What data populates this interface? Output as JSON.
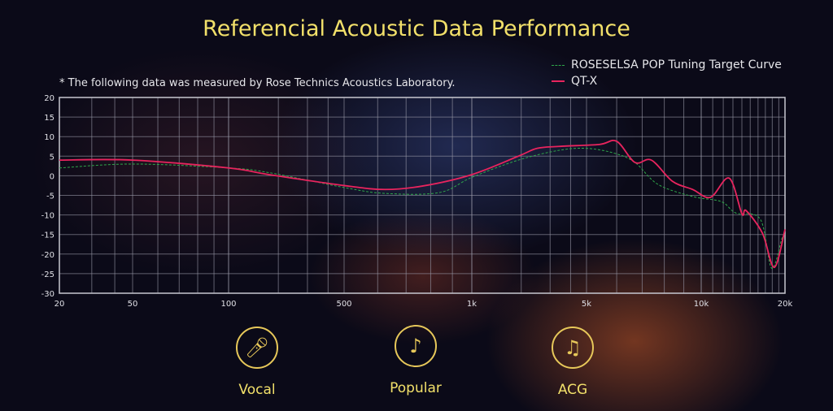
{
  "title": "Referencial Acoustic Data Performance",
  "note": "* The following data was measured by Rose Technics Acoustics Laboratory.",
  "features": [
    {
      "label": "Vocal",
      "icon": "microphone-icon"
    },
    {
      "label": "Popular",
      "icon": "music-note-icon"
    },
    {
      "label": "ACG",
      "icon": "microphone-music-icon"
    }
  ],
  "colors": {
    "title": "#f2e06a",
    "target": "#2fa84a",
    "qtx": "#e8245e",
    "grid": "#9a9aa8"
  },
  "chart_data": {
    "type": "line",
    "title": "",
    "xlabel": "",
    "ylabel": "",
    "xscale": "log",
    "xlim": [
      20,
      20000
    ],
    "ylim": [
      -30,
      20
    ],
    "grid": true,
    "legend_position": "top-right",
    "x_ticks": [
      "20",
      "50",
      "100",
      "500",
      "1k",
      "5k",
      "10k",
      "20k"
    ],
    "y_ticks": [
      "20",
      "15",
      "10",
      "5",
      "0",
      "-5",
      "-10",
      "-15",
      "-20",
      "-25",
      "-30"
    ],
    "series": [
      {
        "name": "ROSESELSA POP Tuning Target Curve",
        "style": "dashed",
        "color": "#2fa84a",
        "points": [
          [
            20,
            2
          ],
          [
            50,
            3
          ],
          [
            100,
            2
          ],
          [
            176,
            0.8
          ],
          [
            500,
            -3
          ],
          [
            624,
            -4.5
          ],
          [
            837,
            -4.3
          ],
          [
            1000,
            -0.4
          ],
          [
            1920,
            4
          ],
          [
            3400,
            6.5
          ],
          [
            5000,
            7
          ],
          [
            5900,
            5.8
          ],
          [
            6700,
            3.4
          ],
          [
            7700,
            -2.2
          ],
          [
            9500,
            -5.3
          ],
          [
            11800,
            -6.6
          ],
          [
            13300,
            -9.5
          ],
          [
            16300,
            -11.1
          ],
          [
            17900,
            -23.6
          ],
          [
            19500,
            -16
          ],
          [
            20000,
            -15
          ]
        ]
      },
      {
        "name": "QT-X",
        "style": "solid",
        "color": "#e8245e",
        "points": [
          [
            20,
            4
          ],
          [
            50,
            4
          ],
          [
            100,
            2
          ],
          [
            176,
            0.3
          ],
          [
            500,
            -2.5
          ],
          [
            624,
            -3.5
          ],
          [
            767,
            -2.6
          ],
          [
            1000,
            0.3
          ],
          [
            1920,
            5
          ],
          [
            2500,
            7
          ],
          [
            3400,
            7.5
          ],
          [
            5400,
            8
          ],
          [
            6000,
            8.8
          ],
          [
            6700,
            3.4
          ],
          [
            7400,
            4
          ],
          [
            8400,
            -1.4
          ],
          [
            9500,
            -3.5
          ],
          [
            10800,
            -5.5
          ],
          [
            12600,
            -0.6
          ],
          [
            14000,
            -9.7
          ],
          [
            14500,
            -8.9
          ],
          [
            16600,
            -14.7
          ],
          [
            18300,
            -23.4
          ],
          [
            20000,
            -13.7
          ]
        ]
      }
    ]
  }
}
